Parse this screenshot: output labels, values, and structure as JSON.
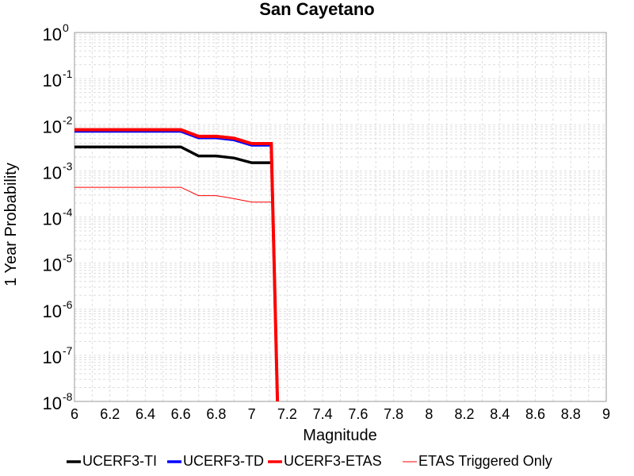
{
  "chart_data": {
    "type": "line",
    "title": "San Cayetano",
    "xlabel": "Magnitude",
    "ylabel": "1 Year Probability",
    "x_scale": "linear",
    "y_scale": "log",
    "xlim": [
      6,
      9
    ],
    "ylim": [
      1e-08,
      1
    ],
    "x_ticks": [
      6,
      6.2,
      6.4,
      6.6,
      6.8,
      7,
      7.2,
      7.4,
      7.6,
      7.8,
      8,
      8.2,
      8.4,
      8.6,
      8.8,
      9
    ],
    "x_tick_labels": [
      "6",
      "6.2",
      "6.4",
      "6.6",
      "6.8",
      "7",
      "7.2",
      "7.4",
      "7.6",
      "7.8",
      "8",
      "8.2",
      "8.4",
      "8.6",
      "8.8",
      "9"
    ],
    "y_ticks": [
      {
        "base": "10",
        "exp": "0",
        "value": 1
      },
      {
        "base": "10",
        "exp": "-1",
        "value": 0.1
      },
      {
        "base": "10",
        "exp": "-2",
        "value": 0.01
      },
      {
        "base": "10",
        "exp": "-3",
        "value": 0.001
      },
      {
        "base": "10",
        "exp": "-4",
        "value": 0.0001
      },
      {
        "base": "10",
        "exp": "-5",
        "value": 1e-05
      },
      {
        "base": "10",
        "exp": "-6",
        "value": 1e-06
      },
      {
        "base": "10",
        "exp": "-7",
        "value": 1e-07
      },
      {
        "base": "10",
        "exp": "-8",
        "value": 1e-08
      }
    ],
    "grid": true,
    "legend_position": "bottom",
    "series": [
      {
        "name": "UCERF3-TI",
        "color": "#000000",
        "width": 3.5,
        "points": [
          [
            6.0,
            0.0033
          ],
          [
            6.6,
            0.0033
          ],
          [
            6.7,
            0.0021
          ],
          [
            6.8,
            0.0021
          ],
          [
            6.9,
            0.0019
          ],
          [
            7.0,
            0.0015
          ],
          [
            7.1,
            0.0015
          ],
          [
            7.11,
            0.0015
          ]
        ]
      },
      {
        "name": "UCERF3-TD",
        "color": "#0000ff",
        "width": 3.5,
        "points": [
          [
            6.0,
            0.0072
          ],
          [
            6.6,
            0.0072
          ],
          [
            6.7,
            0.0052
          ],
          [
            6.8,
            0.0052
          ],
          [
            6.9,
            0.0047
          ],
          [
            7.0,
            0.0036
          ],
          [
            7.1,
            0.0036
          ],
          [
            7.11,
            0.0036
          ],
          [
            7.145,
            1e-08
          ]
        ]
      },
      {
        "name": "UCERF3-ETAS",
        "color": "#ff0000",
        "width": 4,
        "points": [
          [
            6.0,
            0.0078
          ],
          [
            6.6,
            0.0078
          ],
          [
            6.7,
            0.0056
          ],
          [
            6.8,
            0.0056
          ],
          [
            6.9,
            0.0051
          ],
          [
            7.0,
            0.0039
          ],
          [
            7.1,
            0.0039
          ],
          [
            7.11,
            0.0039
          ],
          [
            7.145,
            1e-08
          ]
        ]
      },
      {
        "name": "ETAS Triggered Only",
        "color": "#ff0000",
        "width": 1,
        "points": [
          [
            6.0,
            0.00044
          ],
          [
            6.6,
            0.00044
          ],
          [
            6.7,
            0.00029
          ],
          [
            6.8,
            0.00029
          ],
          [
            6.9,
            0.00025
          ],
          [
            7.0,
            0.00021
          ],
          [
            7.1,
            0.00021
          ],
          [
            7.11,
            0.00021
          ]
        ]
      }
    ]
  }
}
